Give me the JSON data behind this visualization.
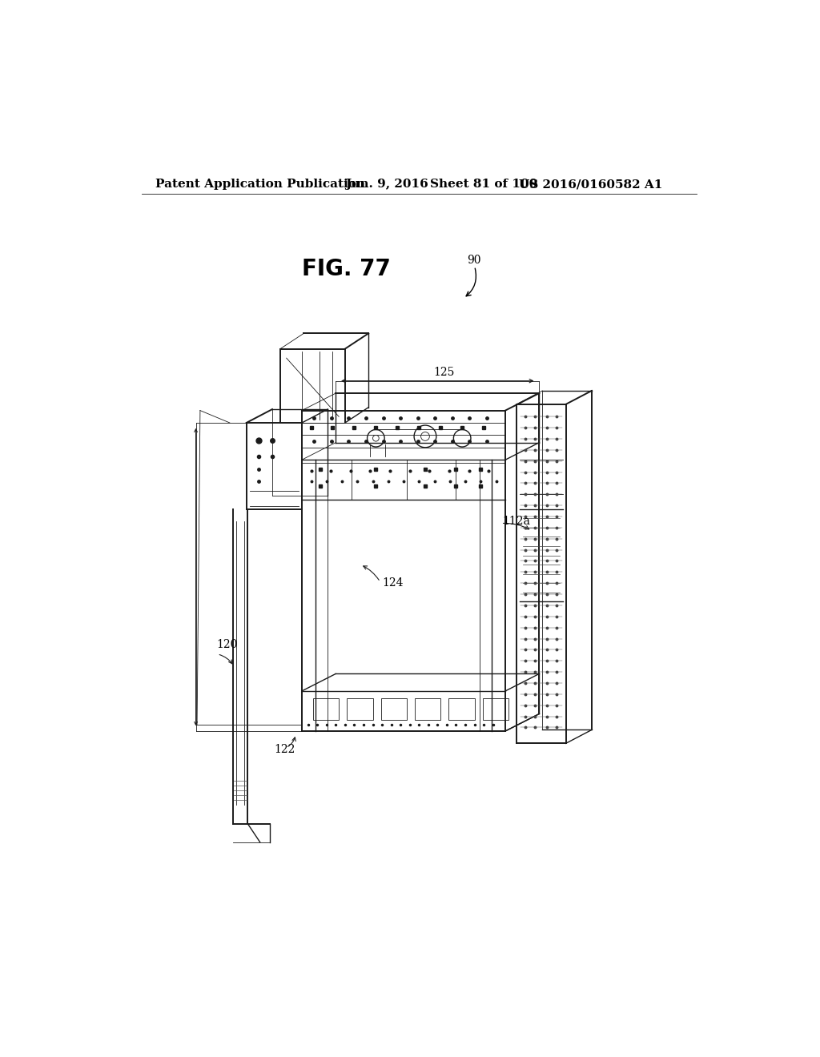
{
  "background_color": "#ffffff",
  "header_text": "Patent Application Publication",
  "header_date": "Jun. 9, 2016",
  "header_sheet": "Sheet 81 of 100",
  "header_patent": "US 2016/0160582 A1",
  "fig_label": "FIG. 77",
  "ref_90": "90",
  "ref_125": "125",
  "ref_124": "124",
  "ref_120": "120",
  "ref_122": "122",
  "ref_112a": "112a",
  "header_fontsize": 11,
  "fig_label_fontsize": 20,
  "ref_fontsize": 10,
  "line_color": "#1a1a1a",
  "light_color": "#888888"
}
